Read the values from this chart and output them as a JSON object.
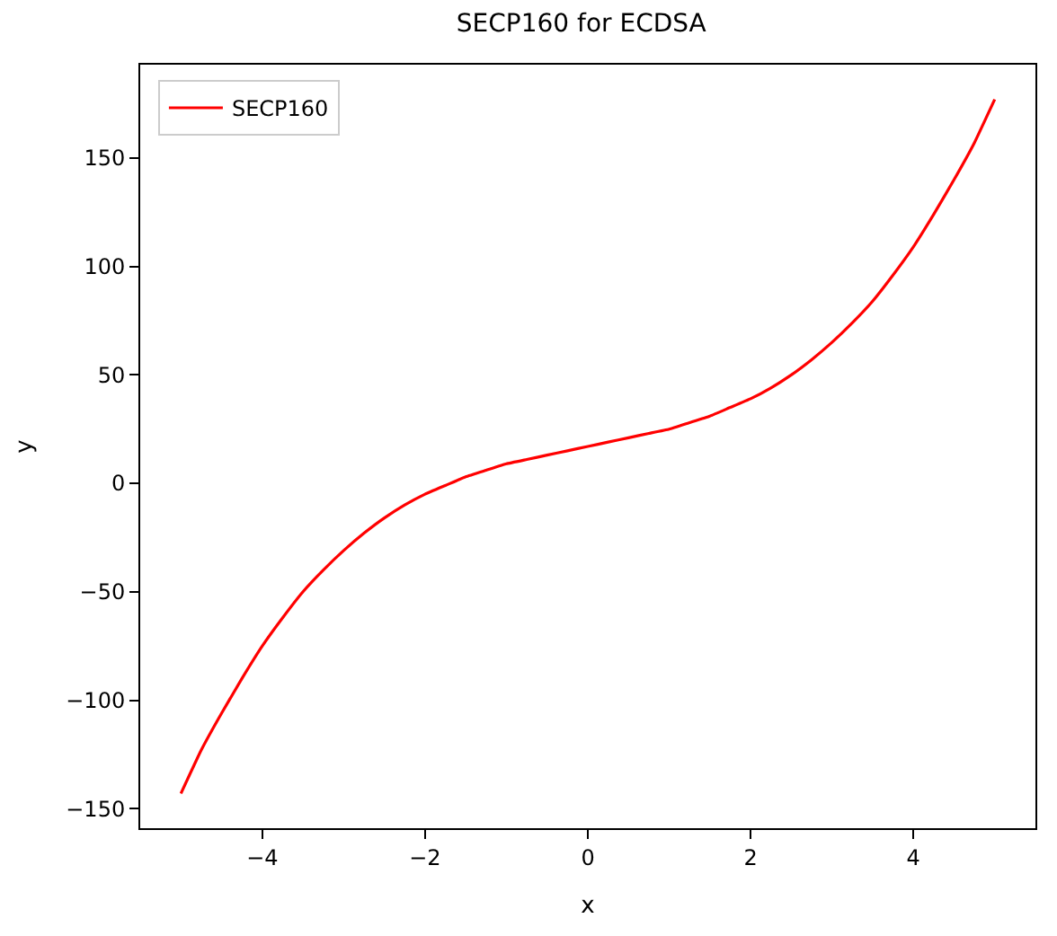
{
  "chart_data": {
    "type": "line",
    "title": "SECP160 for ECDSA",
    "xlabel": "x",
    "ylabel": "y",
    "x": [
      -5,
      -4.75,
      -4.5,
      -4.25,
      -4,
      -3.75,
      -3.5,
      -3.25,
      -3,
      -2.75,
      -2.5,
      -2.25,
      -2,
      -1.75,
      -1.5,
      -1.25,
      -1,
      -0.75,
      -0.5,
      -0.25,
      0,
      0.25,
      0.5,
      0.75,
      1,
      1.25,
      1.5,
      1.75,
      2,
      2.25,
      2.5,
      2.75,
      3,
      3.25,
      3.5,
      3.75,
      4,
      4.25,
      4.5,
      4.75,
      5
    ],
    "series": [
      {
        "name": "SECP160",
        "color": "#ff0000",
        "values": [
          -143,
          -123,
          -106,
          -90,
          -75,
          -62,
          -50,
          -40,
          -31,
          -23,
          -16,
          -10,
          -5,
          -1,
          3,
          6,
          9,
          11,
          13,
          15,
          17,
          19,
          21,
          23,
          25,
          28,
          31,
          35,
          39,
          44,
          50,
          57,
          65,
          74,
          84,
          96,
          109,
          124,
          140,
          157,
          177
        ]
      }
    ],
    "xlim": [
      -5.5,
      5.5
    ],
    "ylim": [
      -159,
      193
    ],
    "xticks": [
      {
        "value": -4,
        "label": "−4"
      },
      {
        "value": -2,
        "label": "−2"
      },
      0,
      2,
      4
    ],
    "yticks": [
      {
        "value": -150,
        "label": "−150"
      },
      {
        "value": -100,
        "label": "−100"
      },
      {
        "value": -50,
        "label": "−50"
      },
      0,
      50,
      100,
      150
    ],
    "legend": "top left",
    "marker": "none",
    "line_style": "solid"
  }
}
